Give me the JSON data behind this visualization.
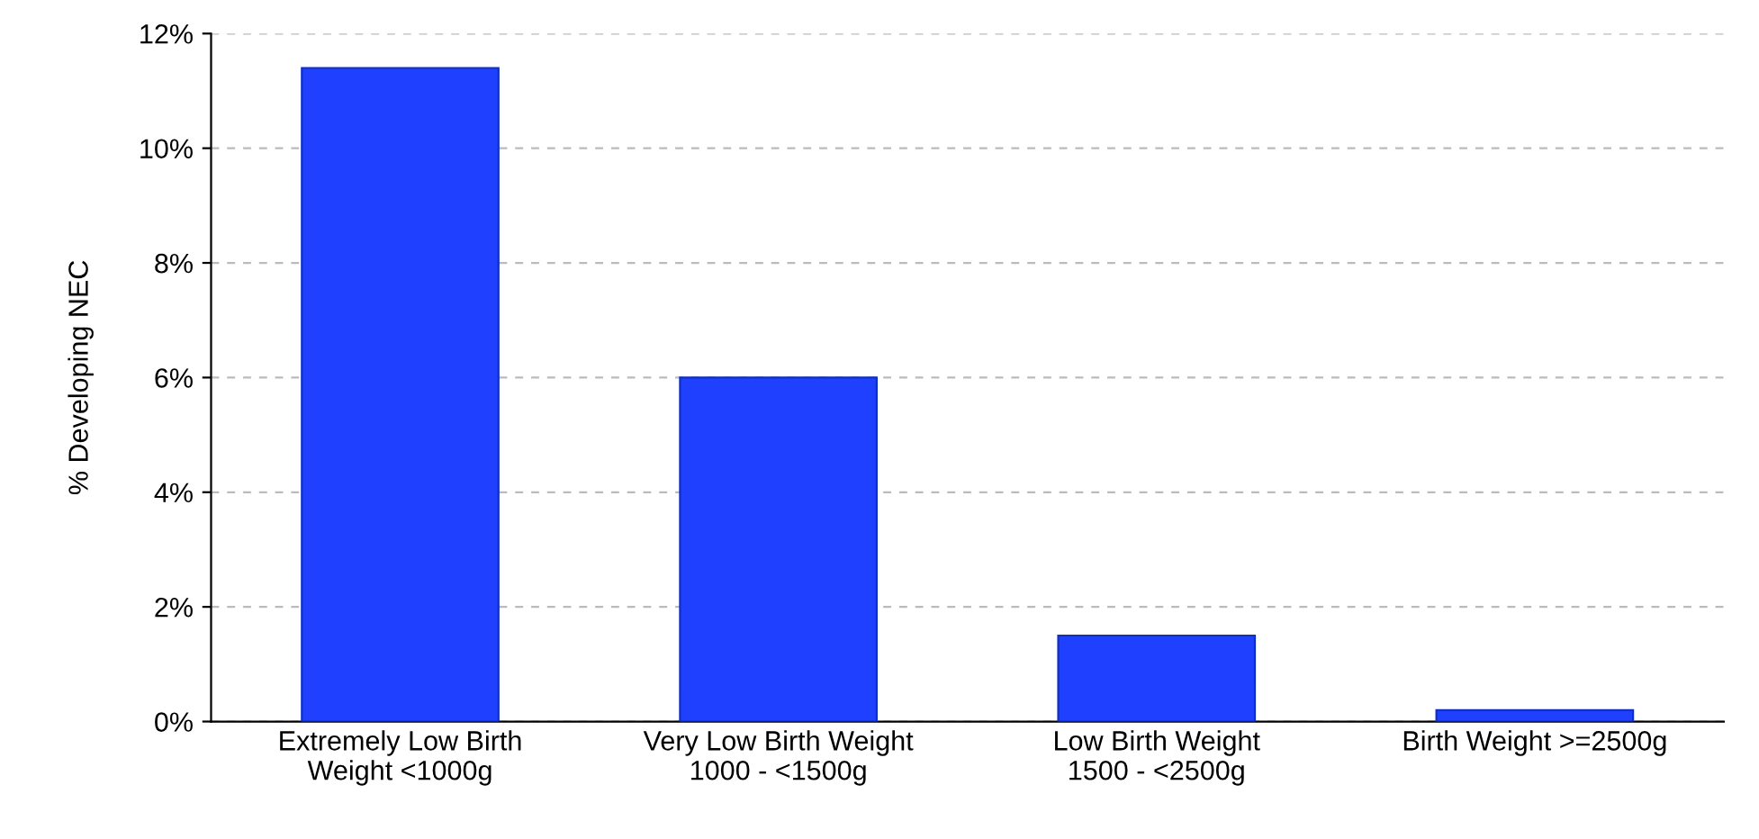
{
  "chart_data": {
    "type": "bar",
    "ylabel": "% Developing NEC",
    "categories": [
      "Extremely Low Birth\nWeight <1000g",
      "Very Low Birth Weight\n1000 - <1500g",
      "Low Birth Weight\n1500 - <2500g",
      "Birth Weight >=2500g"
    ],
    "values": [
      11.4,
      6.0,
      1.5,
      0.2
    ],
    "color": "#1f40ff",
    "ylim": [
      0,
      12
    ],
    "yticks": [
      {
        "value": 0,
        "label": "0%"
      },
      {
        "value": 2,
        "label": "2%"
      },
      {
        "value": 4,
        "label": "4%"
      },
      {
        "value": 6,
        "label": "6%"
      },
      {
        "value": 8,
        "label": "8%"
      },
      {
        "value": 10,
        "label": "10%"
      },
      {
        "value": 12,
        "label": "12%"
      }
    ],
    "grid": "y"
  }
}
